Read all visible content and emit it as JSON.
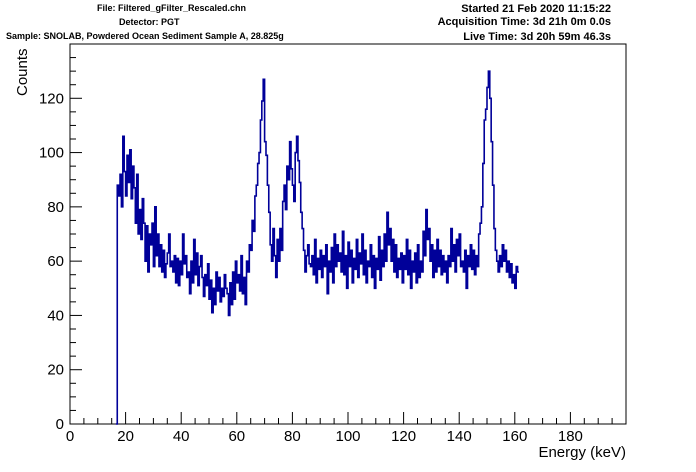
{
  "header": {
    "file": "File: Filtered_gFilter_Rescaled.chn",
    "detector": "Detector: PGT",
    "sample": "Sample: SNOLAB, Powdered Ocean Sediment Sample A, 28.825g",
    "started": "Started 21 Feb 2020 11:15:22",
    "acquisition": "Acquisition Time: 3d 21h 0m 0.0s",
    "live": "Live Time: 3d 20h 59m 46.3s"
  },
  "chart_data": {
    "type": "line",
    "xlabel": "Energy (keV)",
    "ylabel": "Counts",
    "xlim": [
      0,
      200
    ],
    "ylim": [
      0,
      140
    ],
    "x_ticks": [
      0,
      20,
      40,
      60,
      80,
      100,
      120,
      140,
      160,
      180
    ],
    "y_ticks": [
      0,
      20,
      40,
      60,
      80,
      100,
      120
    ],
    "line_color": "#000099",
    "series": [
      {
        "x_start": 16.5,
        "bin_width": 0.5,
        "values": [
          0,
          88,
          84,
          92,
          80,
          106,
          93,
          84,
          99,
          89,
          101,
          83,
          95,
          87,
          74,
          92,
          70,
          79,
          68,
          83,
          74,
          60,
          73,
          56,
          70,
          66,
          74,
          58,
          80,
          62,
          70,
          58,
          66,
          56,
          64,
          54,
          59,
          63,
          70,
          58,
          60,
          56,
          62,
          52,
          61,
          51,
          60,
          55,
          70,
          59,
          62,
          54,
          56,
          48,
          60,
          52,
          68,
          55,
          63,
          51,
          58,
          62,
          54,
          47,
          55,
          51,
          59,
          46,
          53,
          41,
          50,
          44,
          56,
          49,
          54,
          45,
          50,
          47,
          55,
          50,
          48,
          40,
          52,
          44,
          56,
          46,
          60,
          52,
          55,
          49,
          62,
          48,
          54,
          44,
          60,
          56,
          66,
          64,
          75,
          71,
          84,
          88,
          96,
          100,
          112,
          119,
          127,
          104,
          99,
          88,
          78,
          66,
          60,
          72,
          62,
          54,
          68,
          60,
          72,
          64,
          82,
          88,
          79,
          95,
          90,
          104,
          94,
          88,
          82,
          100,
          106,
          97,
          89,
          78,
          72,
          64,
          56,
          62,
          66,
          59,
          58,
          62,
          55,
          68,
          52,
          61,
          57,
          64,
          54,
          62,
          58,
          66,
          48,
          60,
          56,
          65,
          52,
          70,
          58,
          66,
          60,
          63,
          56,
          71,
          55,
          62,
          50,
          67,
          58,
          64,
          52,
          61,
          57,
          68,
          54,
          63,
          59,
          70,
          55,
          64,
          52,
          60,
          58,
          66,
          54,
          62,
          50,
          61,
          57,
          69,
          53,
          64,
          58,
          70,
          60,
          78,
          66,
          72,
          60,
          68,
          56,
          66,
          54,
          61,
          57,
          63,
          52,
          62,
          57,
          68,
          55,
          64,
          50,
          60,
          56,
          63,
          52,
          66,
          54,
          60,
          56,
          71,
          62,
          79,
          68,
          72,
          60,
          66,
          54,
          64,
          56,
          68,
          58,
          64,
          55,
          62,
          56,
          60,
          52,
          62,
          58,
          72,
          60,
          66,
          56,
          68,
          62,
          70,
          58,
          60,
          56,
          64,
          50,
          62,
          58,
          66,
          57,
          64,
          55,
          62,
          58,
          70,
          74,
          80,
          96,
          112,
          116,
          124,
          130,
          120,
          104,
          88,
          72,
          64,
          60,
          56,
          62,
          58,
          66,
          60,
          64,
          56,
          60,
          54,
          59,
          52,
          55,
          50,
          58,
          56
        ]
      }
    ]
  }
}
